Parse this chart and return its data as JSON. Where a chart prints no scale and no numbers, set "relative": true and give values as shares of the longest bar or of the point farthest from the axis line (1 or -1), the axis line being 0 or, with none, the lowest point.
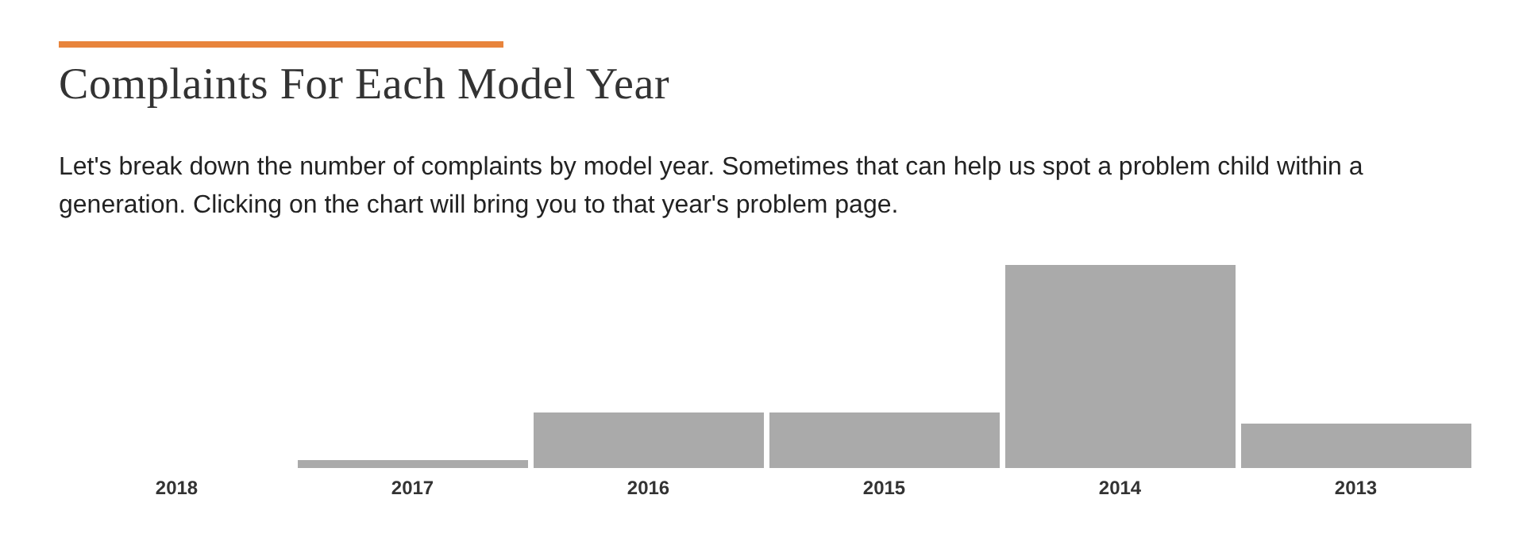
{
  "chart_data": {
    "type": "bar",
    "title": "Complaints For Each Model Year",
    "subtitle": "Let's break down the number of complaints by model year. Sometimes that can help us spot a problem child within a generation. Clicking on the chart will bring you to that year's problem page.",
    "categories": [
      "2018",
      "2017",
      "2016",
      "2015",
      "2014",
      "2013"
    ],
    "values": [
      0,
      0.039,
      0.273,
      0.273,
      1,
      0.219
    ],
    "color": "#aaaaaa",
    "relative": true,
    "grid": false,
    "legend": false
  }
}
